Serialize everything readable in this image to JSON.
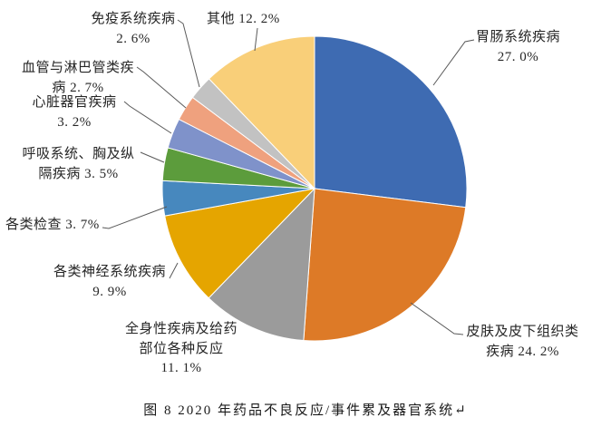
{
  "figure": {
    "caption": "图 8  2020 年药品不良反应/事件累及器官系统↵"
  },
  "chart_data": {
    "type": "pie",
    "title": "图 8  2020 年药品不良反应/事件累及器官系统",
    "legend_position": "none",
    "start_angle": "top, clockwise",
    "categories": [
      "胃肠系统疾病",
      "皮肤及皮下组织类疾病",
      "全身性疾病及给药部位各种反应",
      "各类神经系统疾病",
      "各类检查",
      "呼吸系统、胸及纵隔疾病",
      "心脏器官疾病",
      "血管与淋巴管类疾病",
      "免疫系统疾病",
      "其他"
    ],
    "values": [
      27.0,
      24.2,
      11.1,
      9.9,
      3.7,
      3.5,
      3.2,
      2.7,
      2.6,
      12.2
    ],
    "slices": [
      {
        "name": "胃肠系统疾病",
        "value": 27.0,
        "color": "#3E6BB2",
        "label_lines": [
          "胃肠系统疾病",
          "27. 0%"
        ]
      },
      {
        "name": "皮肤及皮下组织类疾病",
        "value": 24.2,
        "color": "#DD7A27",
        "label_lines": [
          "皮肤及皮下组织类",
          "疾病 24. 2%"
        ]
      },
      {
        "name": "全身性疾病及给药部位各种反应",
        "value": 11.1,
        "color": "#9B9B9B",
        "label_lines": [
          "全身性疾病及给药",
          "部位各种反应",
          "11. 1%"
        ]
      },
      {
        "name": "各类神经系统疾病",
        "value": 9.9,
        "color": "#E5A500",
        "label_lines": [
          "各类神经系统疾病",
          "9. 9%"
        ]
      },
      {
        "name": "各类检查",
        "value": 3.7,
        "color": "#4788BE",
        "label_lines": [
          "各类检查 3. 7%"
        ]
      },
      {
        "name": "呼吸系统、胸及纵隔疾病",
        "value": 3.5,
        "color": "#5C9C3C",
        "label_lines": [
          "呼吸系统、胸及纵",
          "隔疾病 3. 5%"
        ]
      },
      {
        "name": "心脏器官疾病",
        "value": 3.2,
        "color": "#7F92CA",
        "label_lines": [
          "心脏器官疾病",
          "3. 2%"
        ]
      },
      {
        "name": "血管与淋巴管类疾病",
        "value": 2.7,
        "color": "#EFA17E",
        "label_lines": [
          "血管与淋巴管类疾",
          "病 2. 7%"
        ]
      },
      {
        "name": "免疫系统疾病",
        "value": 2.6,
        "color": "#C2C2C2",
        "label_lines": [
          "免疫系统疾病",
          "2. 6%"
        ]
      },
      {
        "name": "其他",
        "value": 12.2,
        "color": "#F9CF79",
        "label_lines": [
          "其他 12. 2%"
        ]
      }
    ],
    "leader_line_color": "#595959"
  }
}
